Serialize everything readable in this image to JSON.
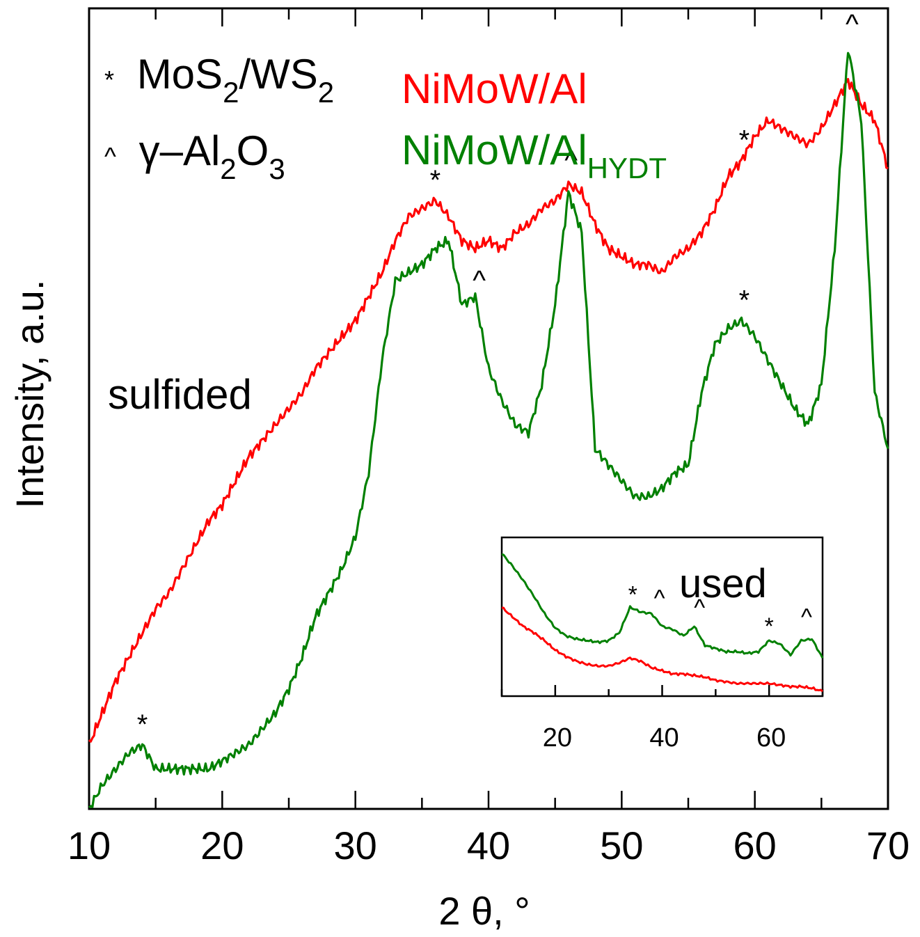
{
  "chart_data": {
    "type": "line",
    "xlabel": "2 θ, °",
    "ylabel": "Intensity, a.u.",
    "xlim": [
      10,
      70
    ],
    "x_ticks": [
      "10",
      "20",
      "30",
      "40",
      "50",
      "60",
      "70"
    ],
    "legend": [
      {
        "text": "NiMoW/Al",
        "sub": "",
        "color": "#ff0000"
      },
      {
        "text": "NiMoW/Al",
        "sub": "HYDT",
        "color": "#008000"
      }
    ],
    "key": [
      {
        "symbol": "*",
        "text": "MoS",
        "sub1": "2",
        "mid": "/WS",
        "sub2": "2"
      },
      {
        "symbol": "^",
        "text": "γ–Al",
        "sub1": "2",
        "mid": "O",
        "sub2": "3"
      }
    ],
    "annotation": "sulfided",
    "series": [
      {
        "color": "#ff0000",
        "x": [
          10,
          11,
          12,
          13,
          14,
          15,
          16,
          17,
          18,
          19,
          20,
          21,
          22,
          23,
          24,
          25,
          26,
          27,
          28,
          29,
          30,
          31,
          32,
          33,
          34,
          35,
          36,
          37,
          38,
          39,
          40,
          41,
          42,
          43,
          44,
          45,
          46,
          47,
          48,
          49,
          50,
          51,
          52,
          53,
          54,
          55,
          56,
          57,
          58,
          59,
          60,
          61,
          62,
          63,
          64,
          65,
          66,
          67,
          68,
          69,
          70
        ],
        "y": [
          0.08,
          0.12,
          0.16,
          0.19,
          0.22,
          0.25,
          0.27,
          0.3,
          0.33,
          0.36,
          0.38,
          0.41,
          0.44,
          0.46,
          0.48,
          0.5,
          0.52,
          0.55,
          0.57,
          0.59,
          0.61,
          0.64,
          0.67,
          0.71,
          0.74,
          0.75,
          0.76,
          0.74,
          0.71,
          0.7,
          0.71,
          0.7,
          0.72,
          0.73,
          0.75,
          0.76,
          0.78,
          0.77,
          0.73,
          0.7,
          0.69,
          0.68,
          0.68,
          0.67,
          0.69,
          0.7,
          0.72,
          0.75,
          0.79,
          0.81,
          0.84,
          0.86,
          0.85,
          0.84,
          0.83,
          0.85,
          0.88,
          0.91,
          0.88,
          0.86,
          0.8
        ]
      },
      {
        "color": "#008000",
        "x": [
          10,
          11,
          12,
          13,
          14,
          15,
          16,
          17,
          18,
          19,
          20,
          21,
          22,
          23,
          24,
          25,
          26,
          27,
          28,
          29,
          30,
          31,
          32,
          33,
          34,
          35,
          36,
          37,
          38,
          39,
          40,
          41,
          42,
          43,
          44,
          45,
          46,
          47,
          48,
          49,
          50,
          51,
          52,
          53,
          54,
          55,
          56,
          57,
          58,
          59,
          60,
          61,
          62,
          63,
          64,
          65,
          66,
          67,
          68,
          69,
          70
        ],
        "y": [
          0.0,
          0.03,
          0.05,
          0.07,
          0.08,
          0.05,
          0.05,
          0.05,
          0.05,
          0.05,
          0.06,
          0.07,
          0.08,
          0.1,
          0.12,
          0.15,
          0.19,
          0.24,
          0.27,
          0.3,
          0.34,
          0.42,
          0.56,
          0.66,
          0.67,
          0.68,
          0.7,
          0.71,
          0.63,
          0.64,
          0.55,
          0.51,
          0.48,
          0.47,
          0.53,
          0.63,
          0.77,
          0.72,
          0.45,
          0.43,
          0.41,
          0.39,
          0.39,
          0.4,
          0.42,
          0.43,
          0.52,
          0.58,
          0.6,
          0.61,
          0.59,
          0.56,
          0.53,
          0.5,
          0.48,
          0.53,
          0.7,
          0.95,
          0.86,
          0.52,
          0.45
        ]
      }
    ],
    "markers": [
      {
        "symbol": "*",
        "x": 14,
        "y": 0.08
      },
      {
        "symbol": "*",
        "x": 36,
        "y": 0.76
      },
      {
        "symbol": "^",
        "x": 39.3,
        "y": 0.64
      },
      {
        "symbol": "^",
        "x": 46.2,
        "y": 0.79
      },
      {
        "symbol": "*",
        "x": 59.2,
        "y": 0.81
      },
      {
        "symbol": "*",
        "x": 59.2,
        "y": 0.61
      },
      {
        "symbol": "^",
        "x": 67.3,
        "y": 0.96
      }
    ],
    "inset": {
      "label": "used",
      "xlim": [
        10,
        70
      ],
      "x_ticks": [
        "20",
        "40",
        "60"
      ],
      "series": [
        {
          "color": "#008000",
          "x": [
            10,
            12,
            14,
            16,
            18,
            20,
            22,
            24,
            26,
            28,
            30,
            32,
            34,
            36,
            38,
            40,
            42,
            44,
            46,
            48,
            50,
            52,
            54,
            56,
            58,
            60,
            62,
            64,
            66,
            68,
            70
          ],
          "y": [
            0.9,
            0.82,
            0.73,
            0.63,
            0.52,
            0.43,
            0.38,
            0.36,
            0.35,
            0.34,
            0.35,
            0.4,
            0.56,
            0.53,
            0.52,
            0.44,
            0.42,
            0.38,
            0.44,
            0.32,
            0.3,
            0.28,
            0.28,
            0.27,
            0.28,
            0.35,
            0.33,
            0.26,
            0.35,
            0.36,
            0.24
          ]
        },
        {
          "color": "#ff0000",
          "x": [
            10,
            12,
            14,
            16,
            18,
            20,
            22,
            24,
            26,
            28,
            30,
            32,
            34,
            36,
            38,
            40,
            42,
            44,
            46,
            48,
            50,
            52,
            54,
            56,
            58,
            60,
            62,
            64,
            66,
            68,
            70
          ],
          "y": [
            0.56,
            0.5,
            0.44,
            0.4,
            0.35,
            0.29,
            0.25,
            0.22,
            0.2,
            0.19,
            0.19,
            0.21,
            0.24,
            0.22,
            0.18,
            0.16,
            0.14,
            0.14,
            0.13,
            0.12,
            0.1,
            0.09,
            0.08,
            0.08,
            0.08,
            0.08,
            0.07,
            0.06,
            0.06,
            0.05,
            0.03
          ]
        }
      ],
      "markers": [
        {
          "symbol": "*",
          "x": 34.5,
          "y": 0.59
        },
        {
          "symbol": "^",
          "x": 39.5,
          "y": 0.54
        },
        {
          "symbol": "^",
          "x": 47,
          "y": 0.48
        },
        {
          "symbol": "*",
          "x": 60,
          "y": 0.39
        },
        {
          "symbol": "^",
          "x": 67,
          "y": 0.42
        }
      ]
    }
  }
}
